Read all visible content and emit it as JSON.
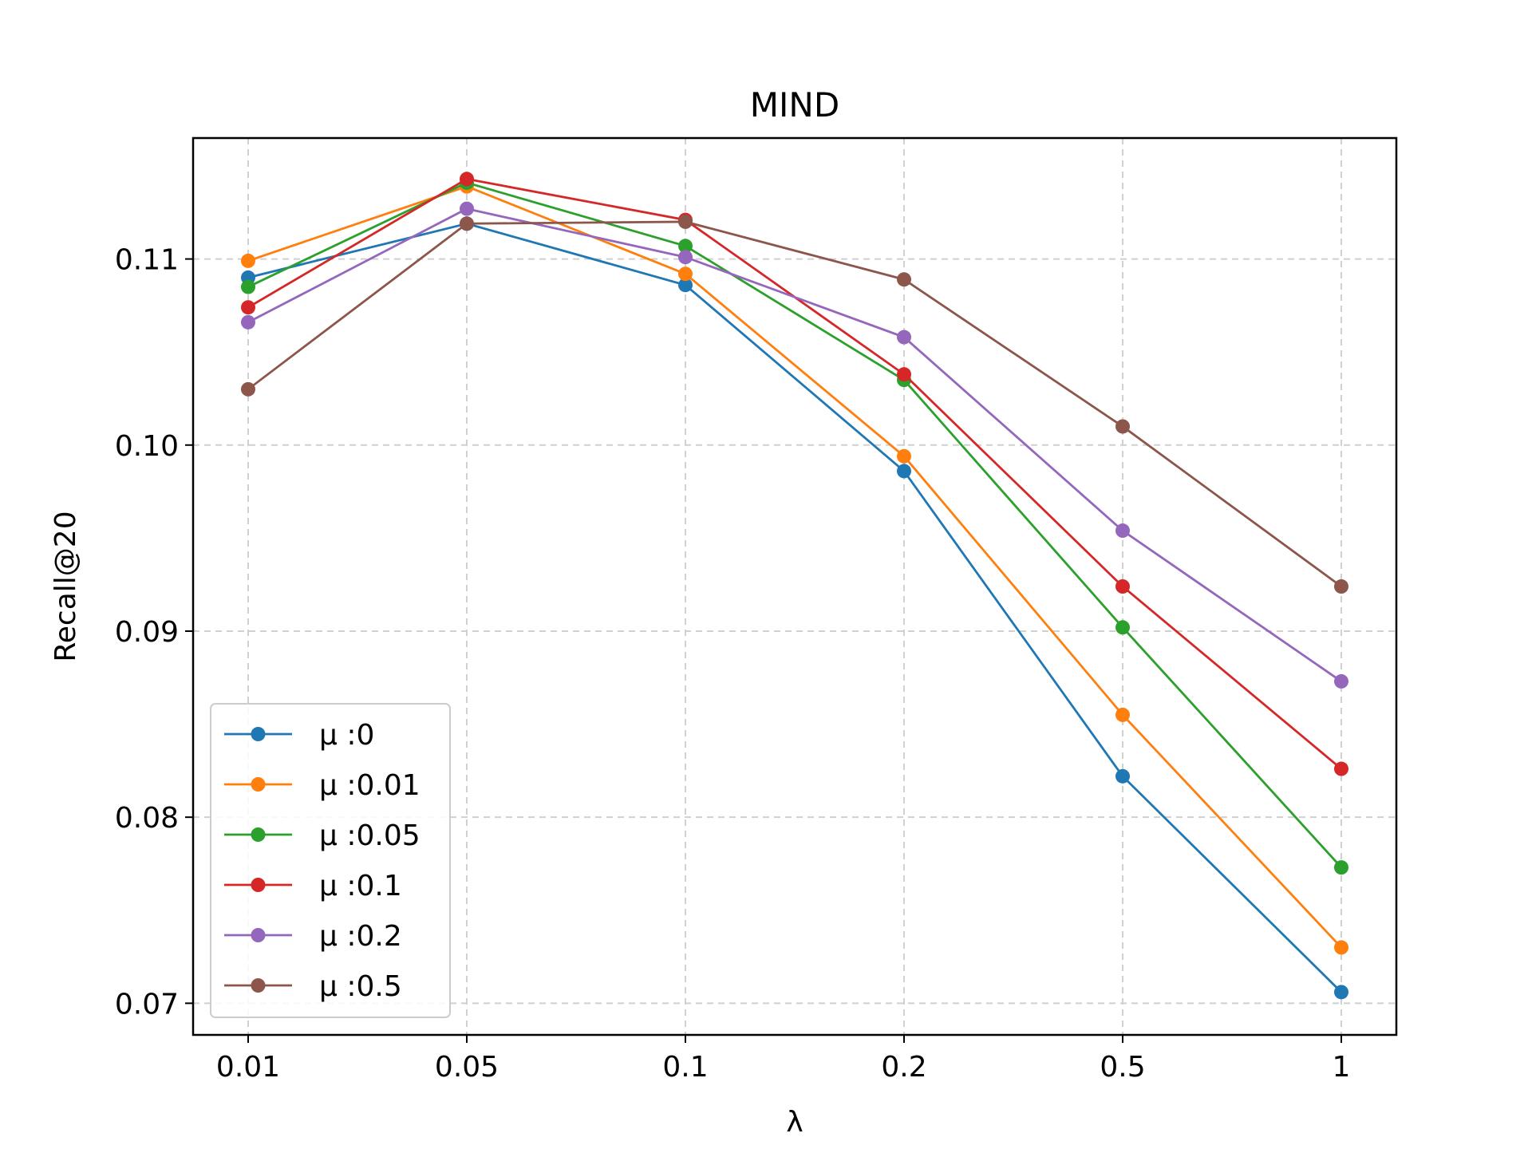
{
  "chart_data": {
    "type": "line",
    "title": "MIND",
    "xlabel": "λ",
    "ylabel": "Recall@20",
    "x": [
      "0.01",
      "0.05",
      "0.1",
      "0.2",
      "0.5",
      "1"
    ],
    "ylim": [
      0.0683,
      0.1165
    ],
    "yticks": [
      "0.07",
      "0.08",
      "0.09",
      "0.10",
      "0.11"
    ],
    "ytick_values": [
      0.07,
      0.08,
      0.09,
      0.1,
      0.11
    ],
    "grid": true,
    "legend_position": "lower-left",
    "series": [
      {
        "name": "μ :0",
        "color": "#1f77b4",
        "values": [
          0.109,
          0.1119,
          0.1086,
          0.0986,
          0.0822,
          0.0706
        ]
      },
      {
        "name": "μ :0.01",
        "color": "#ff7f0e",
        "values": [
          0.1099,
          0.1139,
          0.1092,
          0.0994,
          0.0855,
          0.073
        ]
      },
      {
        "name": "μ :0.05",
        "color": "#2ca02c",
        "values": [
          0.1085,
          0.1141,
          0.1107,
          0.1035,
          0.0902,
          0.0773
        ]
      },
      {
        "name": "μ :0.1",
        "color": "#d62728",
        "values": [
          0.1074,
          0.1143,
          0.1121,
          0.1038,
          0.0924,
          0.0826
        ]
      },
      {
        "name": "μ :0.2",
        "color": "#9467bd",
        "values": [
          0.1066,
          0.1127,
          0.1101,
          0.1058,
          0.0954,
          0.0873
        ]
      },
      {
        "name": "μ :0.5",
        "color": "#8c564b",
        "values": [
          0.103,
          0.1119,
          0.112,
          0.1089,
          0.101,
          0.0924
        ]
      }
    ]
  }
}
